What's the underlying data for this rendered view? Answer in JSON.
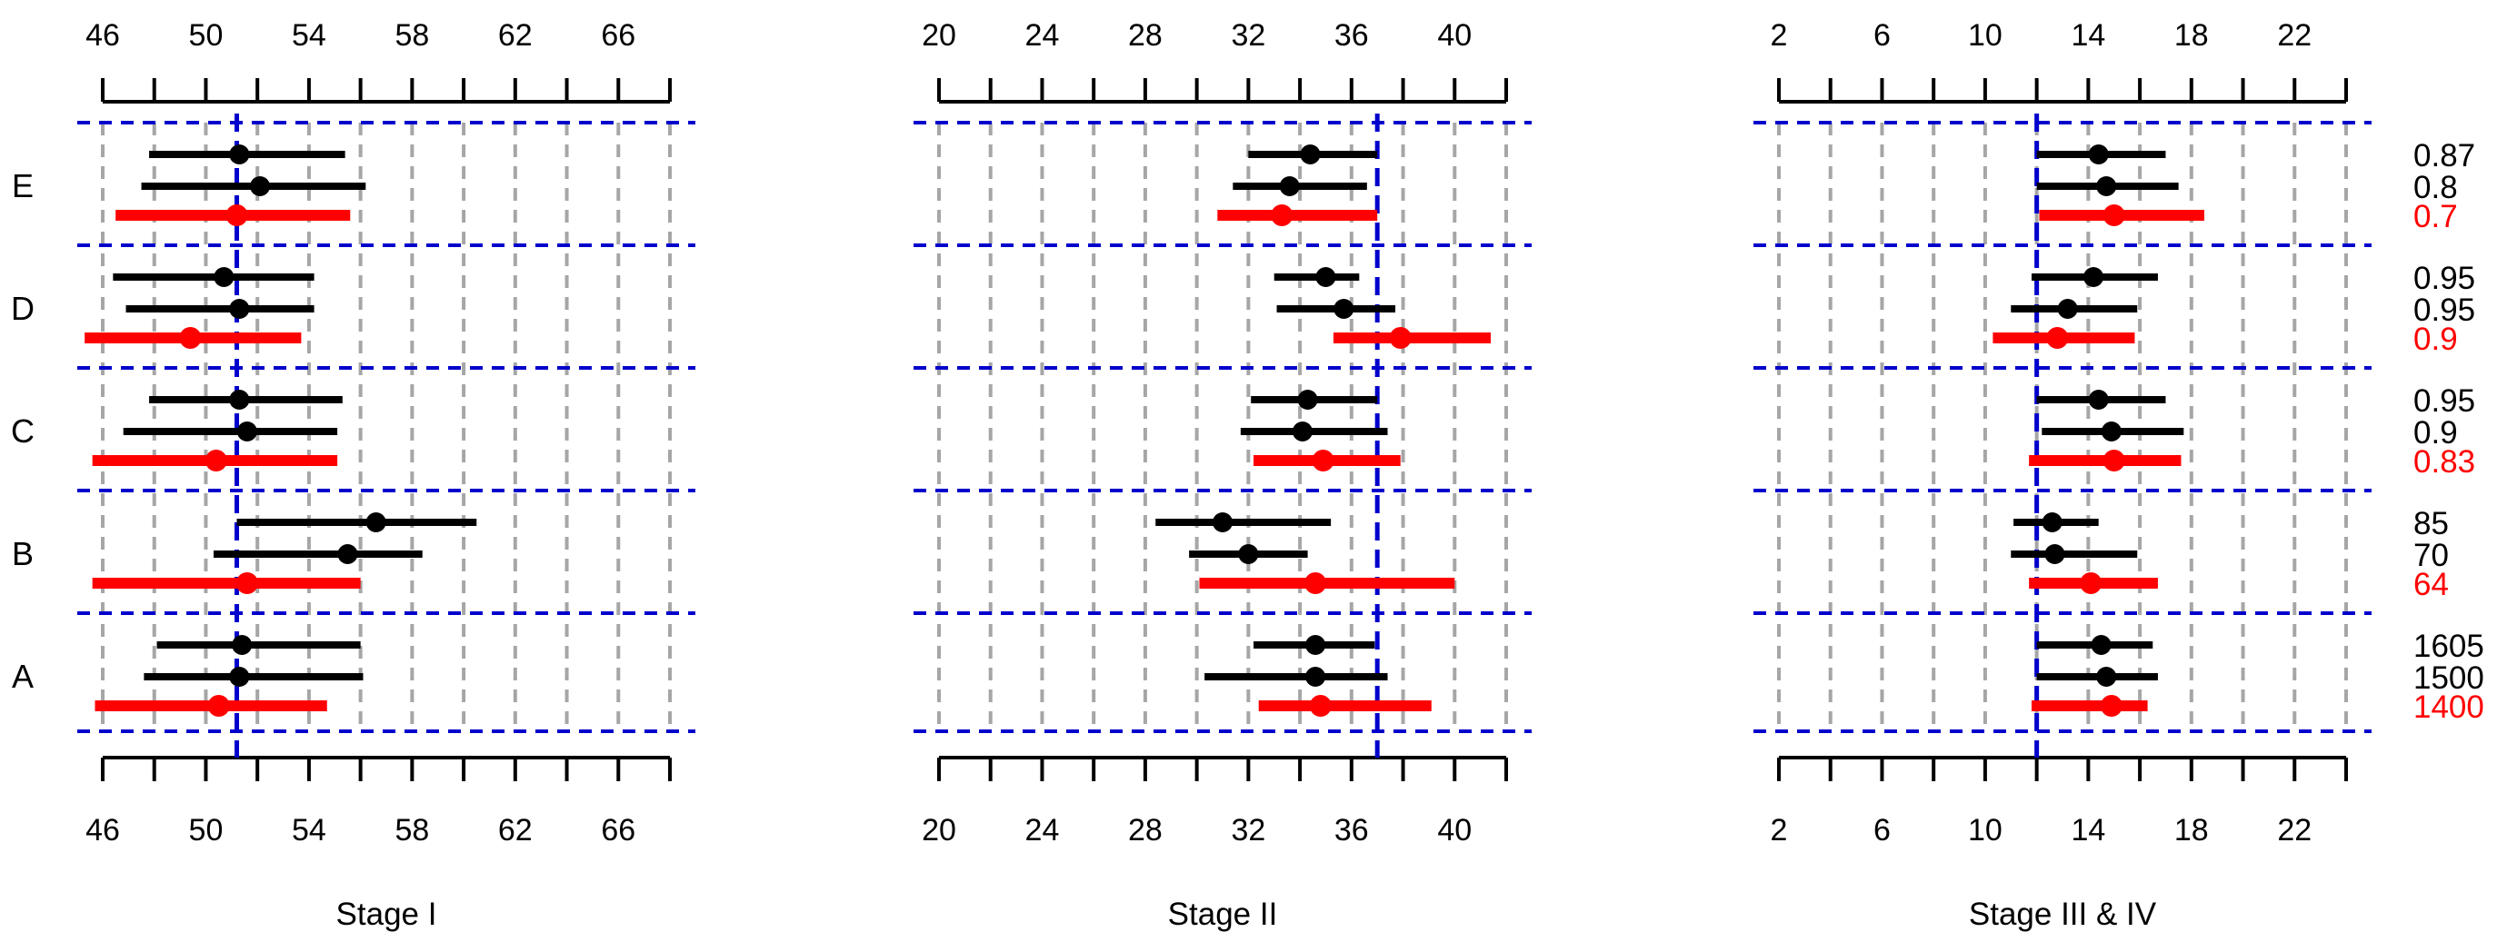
{
  "chart_data": {
    "type": "forest",
    "rows": [
      "E",
      "D",
      "C",
      "B",
      "A"
    ],
    "colors": {
      "black": "#000000",
      "red": "#ff0000",
      "ref": "#0000cc",
      "grid": "#a6a6a6"
    },
    "right_labels": {
      "E": [
        {
          "text": "0.87",
          "color": "black"
        },
        {
          "text": "0.8",
          "color": "black"
        },
        {
          "text": "0.7",
          "color": "red"
        }
      ],
      "D": [
        {
          "text": "0.95",
          "color": "black"
        },
        {
          "text": "0.95",
          "color": "black"
        },
        {
          "text": "0.9",
          "color": "red"
        }
      ],
      "C": [
        {
          "text": "0.95",
          "color": "black"
        },
        {
          "text": "0.9",
          "color": "black"
        },
        {
          "text": "0.83",
          "color": "red"
        }
      ],
      "B": [
        {
          "text": "85",
          "color": "black"
        },
        {
          "text": "70",
          "color": "black"
        },
        {
          "text": "64",
          "color": "red"
        }
      ],
      "A": [
        {
          "text": "1605",
          "color": "black"
        },
        {
          "text": "1500",
          "color": "black"
        },
        {
          "text": "1400",
          "color": "red"
        }
      ]
    },
    "panels": [
      {
        "title": "Stage I",
        "xlim": [
          46,
          68
        ],
        "tick_labels": [
          "46",
          "50",
          "54",
          "58",
          "62",
          "66"
        ],
        "tick_label_values": [
          46,
          50,
          54,
          58,
          62,
          66
        ],
        "minor_ticks": [
          46,
          48,
          50,
          52,
          54,
          56,
          58,
          60,
          62,
          64,
          66,
          68
        ],
        "ref_line": 51.2,
        "points": {
          "E": [
            [
              51.3,
              47.8,
              55.4
            ],
            [
              52.1,
              47.5,
              56.2
            ],
            [
              51.2,
              46.5,
              55.6
            ]
          ],
          "D": [
            [
              50.7,
              46.4,
              54.2
            ],
            [
              51.3,
              46.9,
              54.2
            ],
            [
              49.4,
              45.3,
              53.7
            ]
          ],
          "C": [
            [
              51.3,
              47.8,
              55.3
            ],
            [
              51.6,
              46.8,
              55.1
            ],
            [
              50.4,
              45.6,
              55.1
            ]
          ],
          "B": [
            [
              56.6,
              51.2,
              60.5
            ],
            [
              55.5,
              50.3,
              58.4
            ],
            [
              51.6,
              45.6,
              56.0
            ]
          ],
          "A": [
            [
              51.4,
              48.1,
              56.0
            ],
            [
              51.3,
              47.6,
              56.1
            ],
            [
              50.5,
              45.7,
              54.7
            ]
          ]
        }
      },
      {
        "title": "Stage II",
        "xlim": [
          20,
          42
        ],
        "tick_labels": [
          "20",
          "24",
          "28",
          "32",
          "36",
          "40"
        ],
        "tick_label_values": [
          20,
          24,
          28,
          32,
          36,
          40
        ],
        "minor_ticks": [
          20,
          22,
          24,
          26,
          28,
          30,
          32,
          34,
          36,
          38,
          40,
          42
        ],
        "ref_line": 37.0,
        "points": {
          "E": [
            [
              34.4,
              32.0,
              37.0
            ],
            [
              33.6,
              31.4,
              36.6
            ],
            [
              33.3,
              30.8,
              37.0
            ]
          ],
          "D": [
            [
              35.0,
              33.0,
              36.3
            ],
            [
              35.7,
              33.1,
              37.7
            ],
            [
              37.9,
              35.3,
              41.4
            ]
          ],
          "C": [
            [
              34.3,
              32.1,
              37.0
            ],
            [
              34.1,
              31.7,
              37.4
            ],
            [
              34.9,
              32.2,
              37.9
            ]
          ],
          "B": [
            [
              31.0,
              28.4,
              35.2
            ],
            [
              32.0,
              29.7,
              34.3
            ],
            [
              34.6,
              30.1,
              40.0
            ]
          ],
          "A": [
            [
              34.6,
              32.2,
              36.9
            ],
            [
              34.6,
              30.3,
              37.4
            ],
            [
              34.8,
              32.4,
              39.1
            ]
          ]
        }
      },
      {
        "title": "Stage III & IV",
        "xlim": [
          2,
          24
        ],
        "tick_labels": [
          "2",
          "6",
          "10",
          "14",
          "18",
          "22"
        ],
        "tick_label_values": [
          2,
          6,
          10,
          14,
          18,
          22
        ],
        "minor_ticks": [
          2,
          4,
          6,
          8,
          10,
          12,
          14,
          16,
          18,
          20,
          22,
          24
        ],
        "ref_line": 12.0,
        "points": {
          "E": [
            [
              14.4,
              12.0,
              17.0
            ],
            [
              14.7,
              12.0,
              17.5
            ],
            [
              15.0,
              12.1,
              18.5
            ]
          ],
          "D": [
            [
              14.2,
              11.8,
              16.7
            ],
            [
              13.2,
              11.0,
              15.9
            ],
            [
              12.8,
              10.3,
              15.8
            ]
          ],
          "C": [
            [
              14.4,
              12.0,
              17.0
            ],
            [
              14.9,
              12.2,
              17.7
            ],
            [
              15.0,
              11.7,
              17.6
            ]
          ],
          "B": [
            [
              12.6,
              11.1,
              14.4
            ],
            [
              12.7,
              11.0,
              15.9
            ],
            [
              14.1,
              11.7,
              16.7
            ]
          ],
          "A": [
            [
              14.5,
              12.0,
              16.5
            ],
            [
              14.7,
              12.0,
              16.7
            ],
            [
              14.9,
              11.8,
              16.3
            ]
          ]
        }
      }
    ]
  }
}
